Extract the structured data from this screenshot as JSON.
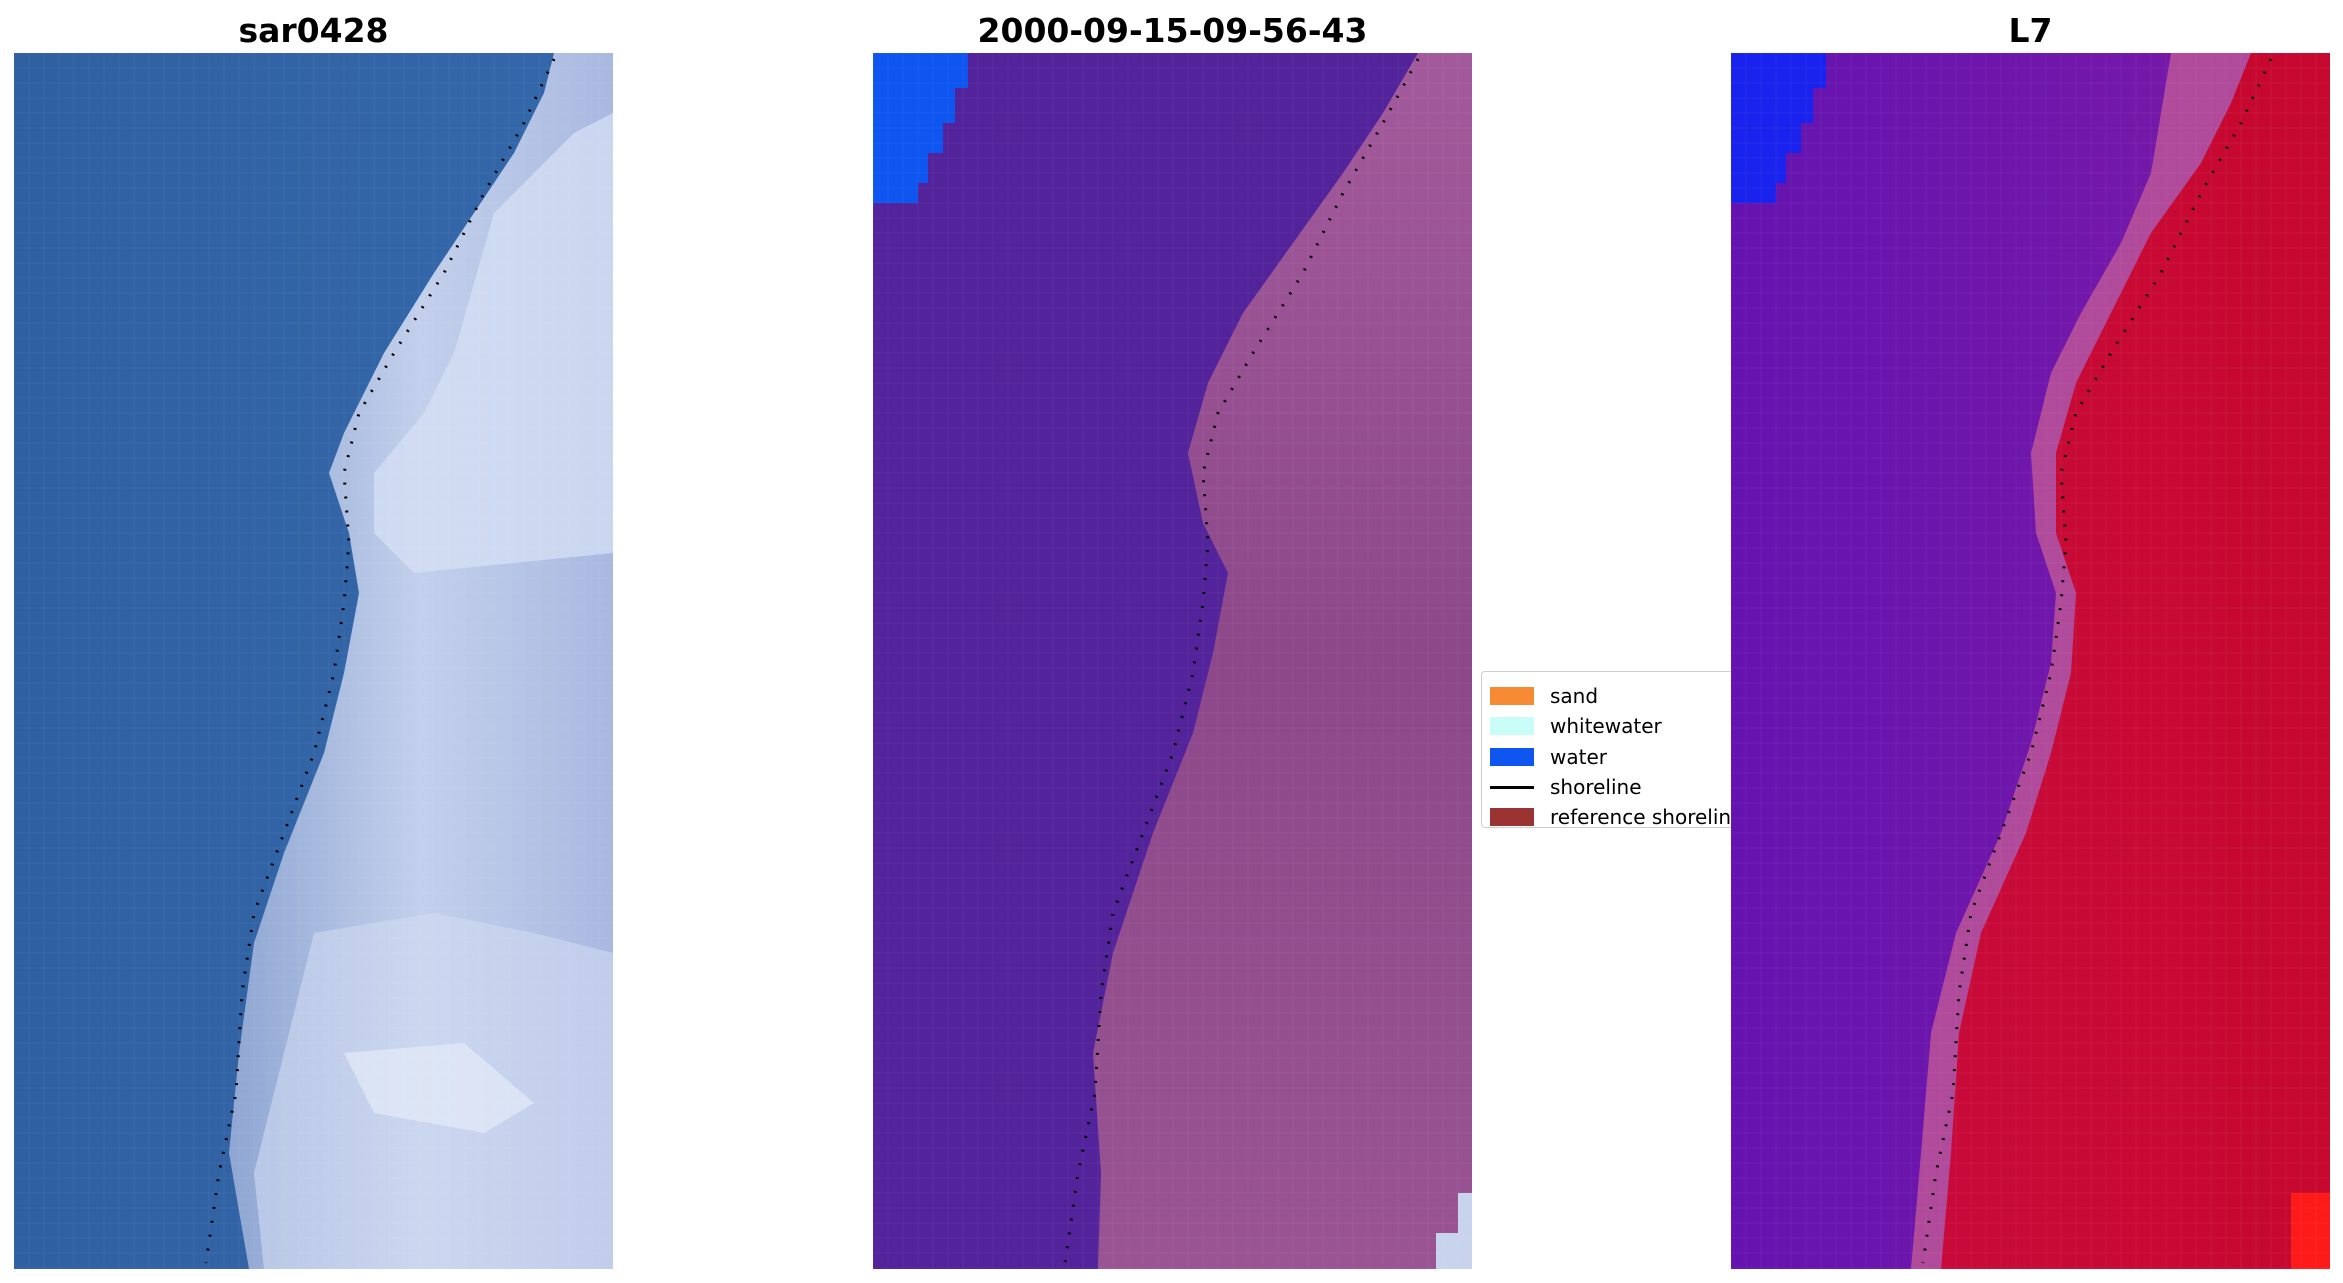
{
  "panels": [
    {
      "title": "sar0428"
    },
    {
      "title": "2000-09-15-09-56-43"
    },
    {
      "title": "L7"
    }
  ],
  "legend": {
    "items": [
      {
        "label": "sand",
        "color": "#f68b33"
      },
      {
        "label": "whitewater",
        "color": "#c8fdf8"
      },
      {
        "label": "water",
        "color": "#0f55f0"
      },
      {
        "label": "shoreline",
        "color": "#000000"
      },
      {
        "label": "reference shoreline",
        "color": "#9c3333"
      }
    ]
  },
  "colors": {
    "rgb_water": "#2f62a6",
    "rgb_surf": "#b8c6e6",
    "classified_water": "#52239a",
    "classified_land": "#8f4a8c",
    "mndwi_water": "#6a12b0",
    "mndwi_land": "#c4082f"
  }
}
